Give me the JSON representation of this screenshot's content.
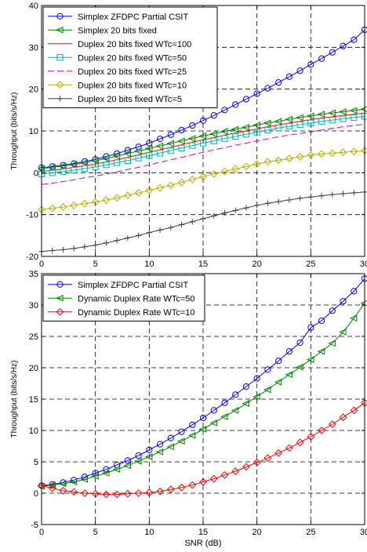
{
  "chart_data": [
    {
      "type": "line",
      "xlabel": "",
      "ylabel": "Throughput (bits/s/Hz)",
      "xlim": [
        0,
        30
      ],
      "ylim": [
        -20,
        40
      ],
      "xticks": [
        0,
        5,
        10,
        15,
        20,
        25,
        30
      ],
      "yticks": [
        -20,
        -10,
        0,
        10,
        20,
        30,
        40
      ],
      "xtick_labels": [
        "0",
        "5",
        "10",
        "15",
        "20",
        "25",
        "30"
      ],
      "ytick_labels": [
        "-20",
        "-10",
        "0",
        "10",
        "20",
        "30",
        "40"
      ],
      "grid": true,
      "legend_position": "top-left",
      "x": [
        0,
        1,
        2,
        3,
        4,
        5,
        6,
        7,
        8,
        9,
        10,
        11,
        12,
        13,
        14,
        15,
        16,
        17,
        18,
        19,
        20,
        21,
        22,
        23,
        24,
        25,
        26,
        27,
        28,
        29,
        30
      ],
      "series": [
        {
          "name": "Simplex ZFDPC Partial CSIT",
          "color": "#0000ff",
          "marker": "circle",
          "dash": "solid",
          "values": [
            1.2,
            1.5,
            1.8,
            2.2,
            2.7,
            3.2,
            3.9,
            4.6,
            5.4,
            6.2,
            7.1,
            8.1,
            9.1,
            10.2,
            11.3,
            12.5,
            13.7,
            15.0,
            16.3,
            17.6,
            18.9,
            20.2,
            21.6,
            23.0,
            24.4,
            25.9,
            27.3,
            28.8,
            30.3,
            31.8,
            34.2
          ]
        },
        {
          "name": "Simplex 20 bits fixed",
          "color": "#008000",
          "marker": "triangle-left",
          "dash": "solid",
          "values": [
            1.0,
            1.3,
            1.6,
            2.0,
            2.4,
            2.9,
            3.4,
            4.0,
            4.6,
            5.2,
            5.8,
            6.4,
            7.0,
            7.6,
            8.2,
            8.8,
            9.3,
            9.9,
            10.4,
            10.9,
            11.4,
            11.9,
            12.3,
            12.8,
            13.2,
            13.6,
            14.0,
            14.3,
            14.6,
            14.9,
            15.2
          ]
        },
        {
          "name": "Duplex 20 bits fixed WTc=100",
          "color": "#ff0000",
          "marker": "none",
          "dash": "solid",
          "values": [
            0.3,
            0.6,
            0.9,
            1.3,
            1.7,
            2.1,
            2.6,
            3.1,
            3.7,
            4.3,
            4.9,
            5.5,
            6.1,
            6.7,
            7.3,
            7.9,
            8.4,
            9.0,
            9.5,
            10.0,
            10.5,
            11.0,
            11.4,
            11.9,
            12.3,
            12.7,
            13.1,
            13.4,
            13.7,
            14.0,
            14.3
          ]
        },
        {
          "name": "Duplex 20 bits fixed WTc=50",
          "color": "#00b0b0",
          "marker": "square",
          "dash": "solid",
          "values": [
            -0.3,
            0.0,
            0.3,
            0.6,
            1.0,
            1.4,
            1.9,
            2.4,
            2.9,
            3.5,
            4.1,
            4.7,
            5.3,
            5.9,
            6.5,
            7.1,
            7.6,
            8.2,
            8.7,
            9.2,
            9.7,
            10.2,
            10.7,
            11.1,
            11.5,
            11.9,
            12.3,
            12.6,
            12.9,
            13.2,
            13.5
          ]
        },
        {
          "name": "Duplex 20 bits fixed WTc=25",
          "color": "#cc00cc",
          "marker": "none",
          "dash": "dashed",
          "values": [
            -2.8,
            -2.5,
            -2.1,
            -1.7,
            -1.2,
            -0.8,
            -0.3,
            0.2,
            0.8,
            1.3,
            1.9,
            2.5,
            3.1,
            3.7,
            4.3,
            4.9,
            5.5,
            6.0,
            6.6,
            7.1,
            7.6,
            8.1,
            8.6,
            9.0,
            9.4,
            9.8,
            10.2,
            10.6,
            11.0,
            11.3,
            11.6
          ]
        },
        {
          "name": "Duplex 20 bits fixed WTc=10",
          "color": "#b3b300",
          "marker": "diamond",
          "dash": "solid",
          "values": [
            -8.8,
            -8.5,
            -8.2,
            -7.8,
            -7.4,
            -7.0,
            -6.5,
            -6.0,
            -5.4,
            -4.8,
            -4.2,
            -3.6,
            -3.0,
            -2.3,
            -1.6,
            -0.9,
            -0.3,
            0.3,
            0.9,
            1.5,
            2.1,
            2.6,
            3.0,
            3.4,
            3.8,
            4.2,
            4.5,
            4.7,
            4.9,
            5.1,
            5.3
          ]
        },
        {
          "name": "Duplex 20 bits fixed WTc=5",
          "color": "#404040",
          "marker": "plus",
          "dash": "solid",
          "values": [
            -18.8,
            -18.6,
            -18.4,
            -18.1,
            -17.7,
            -17.3,
            -16.8,
            -16.2,
            -15.6,
            -15.0,
            -14.3,
            -13.7,
            -13.1,
            -12.4,
            -11.7,
            -11.0,
            -10.3,
            -9.6,
            -9.0,
            -8.4,
            -7.8,
            -7.3,
            -6.9,
            -6.5,
            -6.1,
            -5.8,
            -5.5,
            -5.2,
            -5.0,
            -4.8,
            -4.6
          ]
        }
      ]
    },
    {
      "type": "line",
      "xlabel": "SNR (dB)",
      "ylabel": "Throughput (bits/s/Hz)",
      "xlim": [
        0,
        30
      ],
      "ylim": [
        -5,
        35
      ],
      "xticks": [
        0,
        5,
        10,
        15,
        20,
        25,
        30
      ],
      "yticks": [
        -5,
        0,
        5,
        10,
        15,
        20,
        25,
        30,
        35
      ],
      "xtick_labels": [
        "0",
        "5",
        "10",
        "15",
        "20",
        "25",
        "30"
      ],
      "ytick_labels": [
        "-5",
        "0",
        "5",
        "10",
        "15",
        "20",
        "25",
        "30",
        "35"
      ],
      "grid": true,
      "legend_position": "top-left",
      "x": [
        0,
        1,
        2,
        3,
        4,
        5,
        6,
        7,
        8,
        9,
        10,
        11,
        12,
        13,
        14,
        15,
        16,
        17,
        18,
        19,
        20,
        21,
        22,
        23,
        24,
        25,
        26,
        27,
        28,
        29,
        30
      ],
      "series": [
        {
          "name": "Simplex ZFDPC Partial CSIT",
          "color": "#0000ff",
          "marker": "circle",
          "dash": "solid",
          "values": [
            1.2,
            1.4,
            1.7,
            2.1,
            2.6,
            3.2,
            3.8,
            4.5,
            5.2,
            6.0,
            6.9,
            7.8,
            8.8,
            9.8,
            10.9,
            12.0,
            13.2,
            14.4,
            15.7,
            17.0,
            18.3,
            19.7,
            21.1,
            22.6,
            24.0,
            26.4,
            27.5,
            29.1,
            30.6,
            32.2,
            34.2
          ]
        },
        {
          "name": "Dynamic Duplex Rate WTc=50",
          "color": "#008000",
          "marker": "triangle-left",
          "dash": "solid",
          "values": [
            1.1,
            1.3,
            1.5,
            1.8,
            2.2,
            2.7,
            3.2,
            3.8,
            4.4,
            5.1,
            5.8,
            6.6,
            7.4,
            8.3,
            9.2,
            10.2,
            11.2,
            12.2,
            13.2,
            14.3,
            15.4,
            16.5,
            17.7,
            18.9,
            20.1,
            21.3,
            22.6,
            23.9,
            25.7,
            27.9,
            30.3
          ]
        },
        {
          "name": "Dynamic Duplex Rate WTc=10",
          "color": "#ff0000",
          "marker": "diamond",
          "dash": "solid",
          "values": [
            1.2,
            0.8,
            0.4,
            0.2,
            0.0,
            -0.1,
            -0.2,
            -0.2,
            -0.1,
            0.0,
            0.1,
            0.3,
            0.6,
            0.9,
            1.3,
            1.8,
            2.3,
            2.9,
            3.5,
            4.2,
            4.9,
            5.6,
            6.4,
            7.2,
            8.1,
            9.0,
            10.0,
            11.0,
            12.1,
            13.2,
            14.4
          ]
        }
      ]
    }
  ]
}
